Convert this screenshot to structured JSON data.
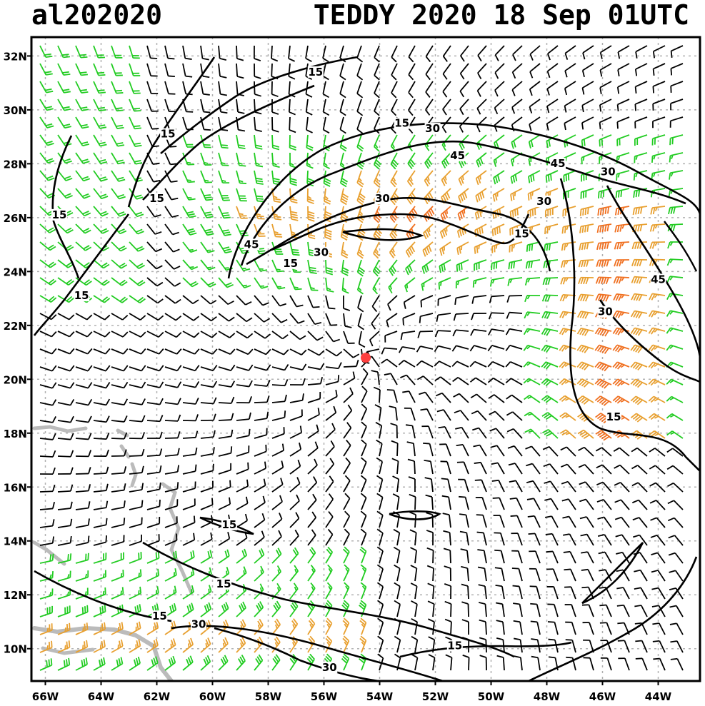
{
  "header": {
    "storm_id": "al202020",
    "storm_info": "TEDDY 2020 18 Sep 01UTC"
  },
  "map": {
    "lon_range": [
      -66.5,
      -42.5
    ],
    "lat_range": [
      8.8,
      32.7
    ],
    "lon_ticks": [
      {
        "value": -66,
        "label": "66W"
      },
      {
        "value": -64,
        "label": "64W"
      },
      {
        "value": -62,
        "label": "62W"
      },
      {
        "value": -60,
        "label": "60W"
      },
      {
        "value": -58,
        "label": "58W"
      },
      {
        "value": -56,
        "label": "56W"
      },
      {
        "value": -54,
        "label": "54W"
      },
      {
        "value": -52,
        "label": "52W"
      },
      {
        "value": -50,
        "label": "50W"
      },
      {
        "value": -48,
        "label": "48W"
      },
      {
        "value": -46,
        "label": "46W"
      },
      {
        "value": -44,
        "label": "44W"
      }
    ],
    "lat_ticks": [
      {
        "value": 10,
        "label": "10N"
      },
      {
        "value": 12,
        "label": "12N"
      },
      {
        "value": 14,
        "label": "14N"
      },
      {
        "value": 16,
        "label": "16N"
      },
      {
        "value": 18,
        "label": "18N"
      },
      {
        "value": 20,
        "label": "20N"
      },
      {
        "value": 22,
        "label": "22N"
      },
      {
        "value": 24,
        "label": "24N"
      },
      {
        "value": 26,
        "label": "26N"
      },
      {
        "value": 28,
        "label": "28N"
      },
      {
        "value": 30,
        "label": "30N"
      },
      {
        "value": 32,
        "label": "32N"
      }
    ],
    "storm_center": {
      "lon": -54.5,
      "lat": 20.8
    },
    "colors": {
      "barb_calm": "#000000",
      "barb_15": "#22cc22",
      "barb_30": "#e8a030",
      "barb_45": "#f07020",
      "barb_60": "#e03030",
      "coast": "#bbbbbb",
      "contour": "#000000",
      "grid": "#b0b0b0",
      "center": "#ff4040"
    },
    "contour_labels": [
      {
        "text": "15",
        "lon": -56.3,
        "lat": 31.3
      },
      {
        "text": "15",
        "lon": -61.6,
        "lat": 29.0
      },
      {
        "text": "15",
        "lon": -62.0,
        "lat": 26.6
      },
      {
        "text": "15",
        "lon": -65.5,
        "lat": 26.0
      },
      {
        "text": "15",
        "lon": -64.7,
        "lat": 23.0
      },
      {
        "text": "15",
        "lon": -53.2,
        "lat": 29.4
      },
      {
        "text": "30",
        "lon": -52.1,
        "lat": 29.2
      },
      {
        "text": "45",
        "lon": -51.2,
        "lat": 28.2
      },
      {
        "text": "30",
        "lon": -53.9,
        "lat": 26.6
      },
      {
        "text": "30",
        "lon": -48.1,
        "lat": 26.5
      },
      {
        "text": "45",
        "lon": -47.6,
        "lat": 27.9
      },
      {
        "text": "30",
        "lon": -45.8,
        "lat": 27.6
      },
      {
        "text": "15",
        "lon": -48.9,
        "lat": 25.3
      },
      {
        "text": "45",
        "lon": -58.6,
        "lat": 24.9
      },
      {
        "text": "30",
        "lon": -56.1,
        "lat": 24.6
      },
      {
        "text": "15",
        "lon": -57.2,
        "lat": 24.2
      },
      {
        "text": "45",
        "lon": -44.0,
        "lat": 23.6
      },
      {
        "text": "30",
        "lon": -45.9,
        "lat": 22.4
      },
      {
        "text": "15",
        "lon": -45.6,
        "lat": 18.5
      },
      {
        "text": "15",
        "lon": -59.4,
        "lat": 14.5
      },
      {
        "text": "15",
        "lon": -59.6,
        "lat": 12.3
      },
      {
        "text": "15",
        "lon": -61.9,
        "lat": 11.1
      },
      {
        "text": "30",
        "lon": -60.5,
        "lat": 10.8
      },
      {
        "text": "15",
        "lon": -51.3,
        "lat": 10.0
      },
      {
        "text": "30",
        "lon": -55.8,
        "lat": 9.2
      }
    ]
  }
}
